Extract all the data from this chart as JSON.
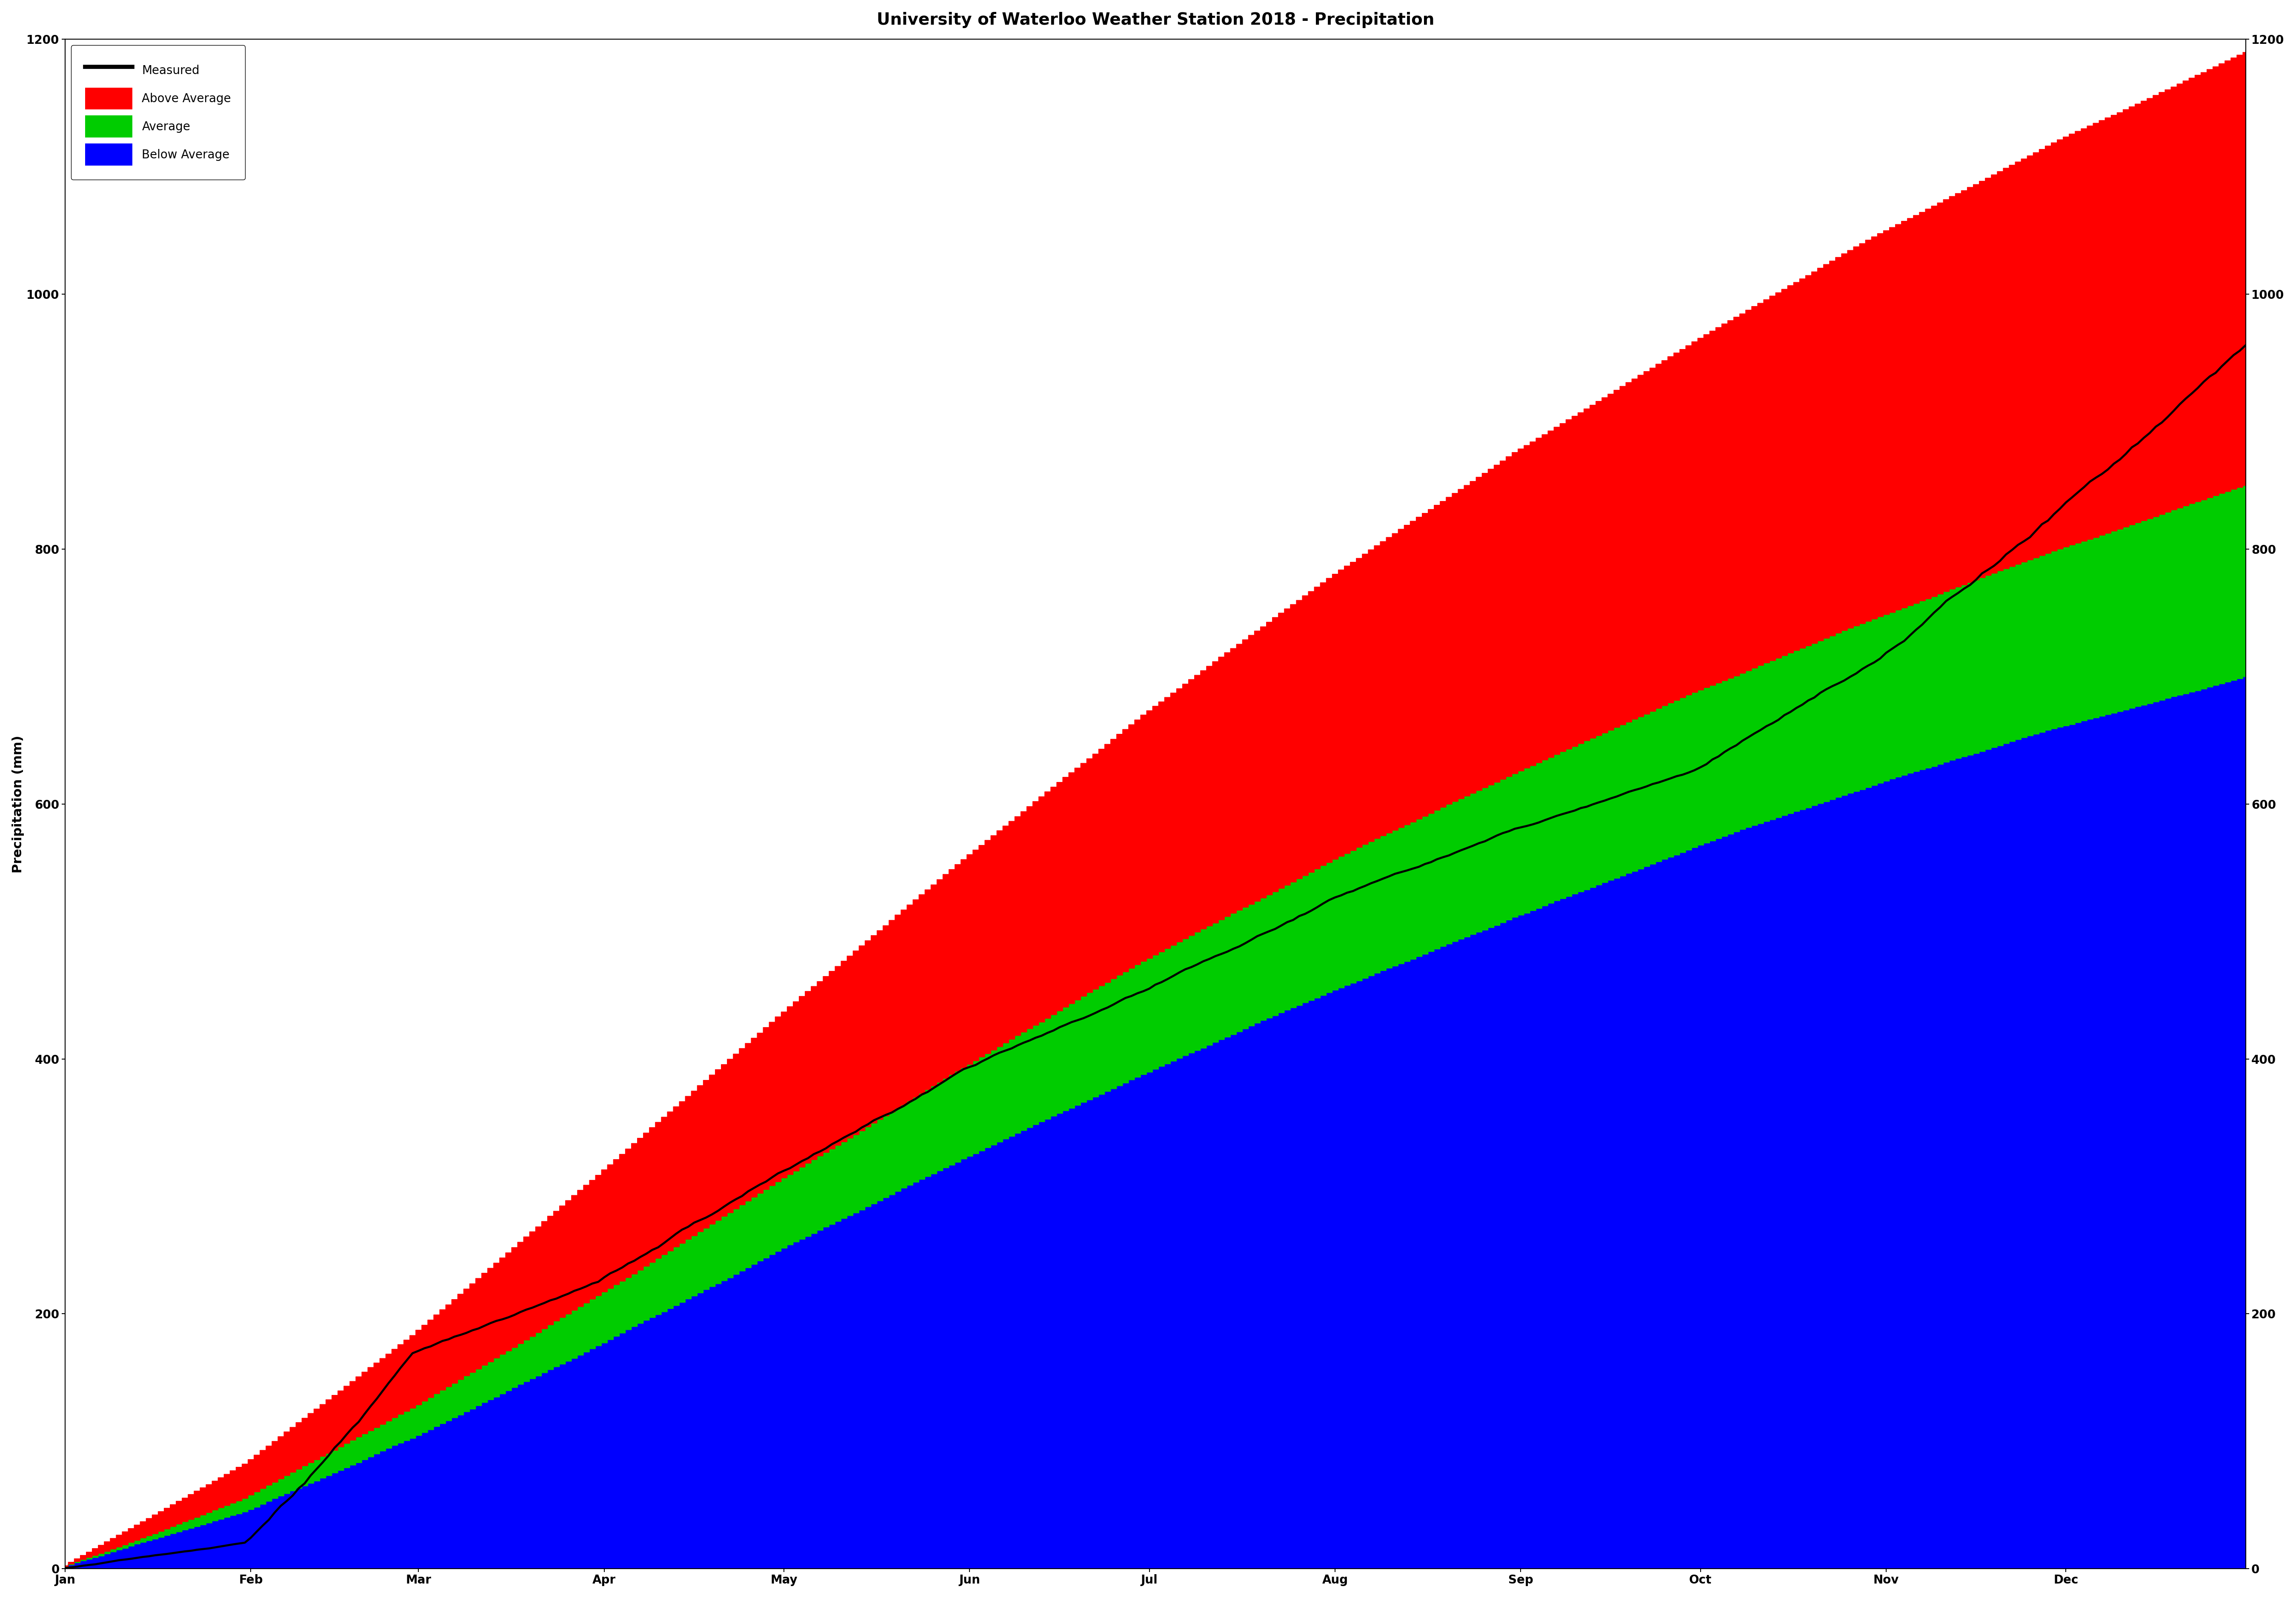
{
  "title": "University of Waterloo Weather Station 2018 - Precipitation",
  "ylabel": "Precipitation (mm)",
  "ylim": [
    0,
    1200
  ],
  "yticks": [
    0,
    200,
    400,
    600,
    800,
    1000,
    1200
  ],
  "months": [
    "Jan",
    "Feb",
    "Mar",
    "Apr",
    "May",
    "Jun",
    "Jul",
    "Aug",
    "Sep",
    "Oct",
    "Nov",
    "Dec"
  ],
  "month_day_positions": [
    0,
    31,
    59,
    90,
    120,
    151,
    181,
    212,
    243,
    273,
    304,
    334
  ],
  "colors": {
    "above_avg": "#FF0000",
    "average": "#00CC00",
    "below_avg": "#0000FF",
    "measured": "#000000",
    "background": "#FFFFFF"
  },
  "title_fontsize": 28,
  "axis_fontsize": 22,
  "tick_fontsize": 20,
  "legend_fontsize": 20,
  "line_width": 3.5,
  "below_avg_final": 700,
  "avg_final": 850,
  "above_avg_final": 1190,
  "measured_final": 960
}
